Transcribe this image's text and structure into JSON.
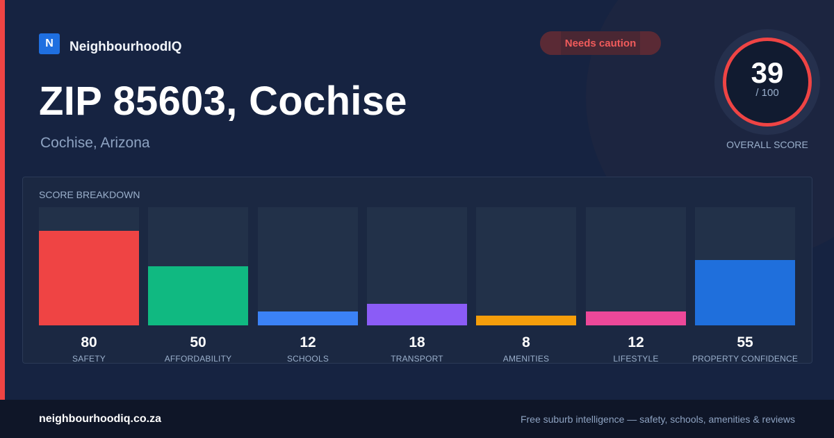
{
  "brand": {
    "logo_letter": "N",
    "name": "NeighbourhoodIQ"
  },
  "badge": {
    "label": "Needs caution",
    "color": "#f05b5b"
  },
  "header": {
    "title": "ZIP 85603, Cochise",
    "subtitle": "Cochise, Arizona"
  },
  "overall": {
    "value": "39",
    "max_label": "/ 100",
    "label": "OVERALL SCORE",
    "ring_color": "#ef4444"
  },
  "breakdown": {
    "title": "SCORE BREAKDOWN",
    "items": [
      {
        "label": "SAFETY",
        "value": 80,
        "color": "#ef4444"
      },
      {
        "label": "AFFORDABILITY",
        "value": 50,
        "color": "#10b981"
      },
      {
        "label": "SCHOOLS",
        "value": 12,
        "color": "#3b82f6"
      },
      {
        "label": "TRANSPORT",
        "value": 18,
        "color": "#8b5cf6"
      },
      {
        "label": "AMENITIES",
        "value": 8,
        "color": "#f59e0b"
      },
      {
        "label": "LIFESTYLE",
        "value": 12,
        "color": "#ec4899"
      },
      {
        "label": "PROPERTY CONFIDENCE",
        "value": 55,
        "color": "#1f6fdc"
      }
    ]
  },
  "footer": {
    "domain": "neighbourhoodiq.co.za",
    "tagline": "Free suburb intelligence — safety, schools, amenities & reviews"
  }
}
